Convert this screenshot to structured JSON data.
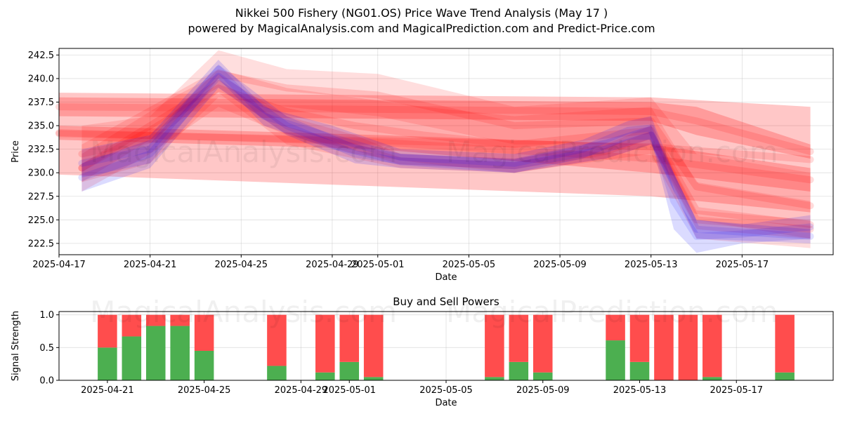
{
  "header": {
    "title": "Nikkei 500 Fishery (NG01.OS) Price Wave Trend Analysis (May 17 )",
    "subtitle": "powered by MagicalAnalysis.com and MagicalPrediction.com and Predict-Price.com"
  },
  "watermarks": [
    "MagicalAnalysis.com",
    "MagicalPrediction.com"
  ],
  "colors": {
    "buy": "#4caf50",
    "sell": "#ff4d4d",
    "red_band": "#ff0000",
    "blue_band": "#0000ff"
  },
  "chart_data": [
    {
      "type": "area",
      "title": "",
      "xlabel": "Date",
      "ylabel": "Price",
      "xlim": [
        "2025-04-17",
        "2025-05-21"
      ],
      "ylim": [
        221.3,
        243.2
      ],
      "x_ticks": [
        "2025-04-17",
        "2025-04-21",
        "2025-04-25",
        "2025-04-29",
        "2025-05-01",
        "2025-05-05",
        "2025-05-09",
        "2025-05-13",
        "2025-05-17"
      ],
      "y_ticks": [
        222.5,
        225.0,
        227.5,
        230.0,
        232.5,
        235.0,
        237.5,
        240.0,
        242.5
      ],
      "grid": true,
      "series": [
        {
          "color": "red",
          "x": [
            "2025-04-17",
            "2025-05-13",
            "2025-05-20"
          ],
          "upper": [
            238.5,
            238.0,
            237.0
          ],
          "lower": [
            229.8,
            227.5,
            225.8
          ]
        },
        {
          "color": "red",
          "x": [
            "2025-04-17",
            "2025-05-01",
            "2025-05-13",
            "2025-05-20"
          ],
          "upper": [
            235.0,
            234.0,
            233.0,
            230.5
          ],
          "lower": [
            233.5,
            232.5,
            230.0,
            228.0
          ]
        },
        {
          "color": "red",
          "x": [
            "2025-04-17",
            "2025-05-13",
            "2025-05-15",
            "2025-05-20"
          ],
          "upper": [
            238.0,
            237.5,
            237.0,
            233.0
          ],
          "lower": [
            236.0,
            235.5,
            234.0,
            231.5
          ]
        },
        {
          "color": "red",
          "x": [
            "2025-04-18",
            "2025-04-21",
            "2025-04-24",
            "2025-04-27",
            "2025-05-01",
            "2025-05-07",
            "2025-05-13",
            "2025-05-15",
            "2025-05-20"
          ],
          "upper": [
            235.0,
            236.0,
            243.0,
            241.0,
            240.5,
            237.0,
            238.0,
            232.0,
            230.0
          ],
          "lower": [
            229.0,
            231.0,
            238.0,
            237.0,
            236.0,
            233.0,
            233.0,
            225.0,
            223.0
          ]
        },
        {
          "color": "red",
          "x": [
            "2025-04-18",
            "2025-04-21",
            "2025-04-24",
            "2025-04-27",
            "2025-04-30",
            "2025-05-03",
            "2025-05-07",
            "2025-05-10",
            "2025-05-13",
            "2025-05-15",
            "2025-05-20"
          ],
          "upper": [
            233.0,
            237.0,
            241.0,
            239.0,
            238.0,
            237.0,
            236.0,
            236.5,
            237.0,
            229.0,
            227.0
          ],
          "lower": [
            228.0,
            232.0,
            237.0,
            234.0,
            232.0,
            231.0,
            230.0,
            231.0,
            232.0,
            223.0,
            222.0
          ]
        },
        {
          "color": "red",
          "x": [
            "2025-04-18",
            "2025-04-22",
            "2025-04-24",
            "2025-04-27",
            "2025-04-30",
            "2025-05-02",
            "2025-05-07",
            "2025-05-11",
            "2025-05-13",
            "2025-05-15",
            "2025-05-20"
          ],
          "upper": [
            232.0,
            238.0,
            240.5,
            236.0,
            234.0,
            232.0,
            231.5,
            233.0,
            235.0,
            226.0,
            225.0
          ],
          "lower": [
            229.0,
            235.0,
            238.5,
            233.0,
            231.5,
            230.5,
            230.0,
            231.5,
            233.0,
            224.0,
            223.0
          ]
        },
        {
          "color": "blue",
          "x": [
            "2025-04-18",
            "2025-04-21",
            "2025-04-24",
            "2025-04-26",
            "2025-04-29",
            "2025-05-02",
            "2025-05-07",
            "2025-05-10",
            "2025-05-12",
            "2025-05-13",
            "2025-05-14",
            "2025-05-15",
            "2025-05-17",
            "2025-05-20"
          ],
          "upper": [
            232.5,
            234.0,
            242.0,
            237.0,
            235.0,
            232.5,
            232.0,
            233.5,
            235.5,
            236.0,
            230.0,
            225.0,
            224.5,
            225.5
          ],
          "lower": [
            229.5,
            231.0,
            240.0,
            235.0,
            232.5,
            230.8,
            230.0,
            231.5,
            233.5,
            233.5,
            224.0,
            221.5,
            222.5,
            223.0
          ]
        },
        {
          "color": "blue",
          "x": [
            "2025-04-18",
            "2025-04-21",
            "2025-04-24",
            "2025-04-27",
            "2025-04-30",
            "2025-05-02",
            "2025-05-07",
            "2025-05-11",
            "2025-05-13",
            "2025-05-15",
            "2025-05-20"
          ],
          "upper": [
            231.0,
            233.5,
            241.5,
            236.0,
            233.0,
            232.0,
            231.5,
            233.5,
            235.0,
            225.0,
            224.0
          ],
          "lower": [
            228.0,
            230.5,
            239.0,
            234.0,
            231.0,
            230.5,
            230.0,
            231.5,
            233.0,
            223.0,
            222.5
          ]
        }
      ]
    },
    {
      "type": "bar",
      "title": "Buy and Sell Powers",
      "xlabel": "Date",
      "ylabel": "Signal Strength",
      "xlim": [
        "2025-04-19",
        "2025-05-21"
      ],
      "ylim": [
        0,
        1.05
      ],
      "x_ticks": [
        "2025-04-21",
        "2025-04-25",
        "2025-04-29",
        "2025-05-01",
        "2025-05-05",
        "2025-05-09",
        "2025-05-13",
        "2025-05-17"
      ],
      "y_ticks": [
        0.0,
        0.5,
        1.0
      ],
      "grid": true,
      "dates": [
        "2025-04-21",
        "2025-04-22",
        "2025-04-23",
        "2025-04-24",
        "2025-04-25",
        "2025-04-28",
        "2025-04-30",
        "2025-05-01",
        "2025-05-02",
        "2025-05-07",
        "2025-05-08",
        "2025-05-09",
        "2025-05-12",
        "2025-05-13",
        "2025-05-14",
        "2025-05-15",
        "2025-05-16",
        "2025-05-19"
      ],
      "series": [
        {
          "name": "buy",
          "values": [
            0.5,
            0.67,
            0.83,
            0.83,
            0.45,
            0.22,
            0.12,
            0.28,
            0.05,
            0.05,
            0.28,
            0.12,
            0.61,
            0.28,
            0.0,
            0.0,
            0.05,
            0.12
          ]
        },
        {
          "name": "sell",
          "values": [
            0.5,
            0.33,
            0.17,
            0.17,
            0.55,
            0.78,
            0.88,
            0.72,
            0.95,
            0.95,
            0.72,
            0.88,
            0.39,
            0.72,
            1.0,
            1.0,
            0.95,
            0.88
          ]
        }
      ]
    }
  ]
}
